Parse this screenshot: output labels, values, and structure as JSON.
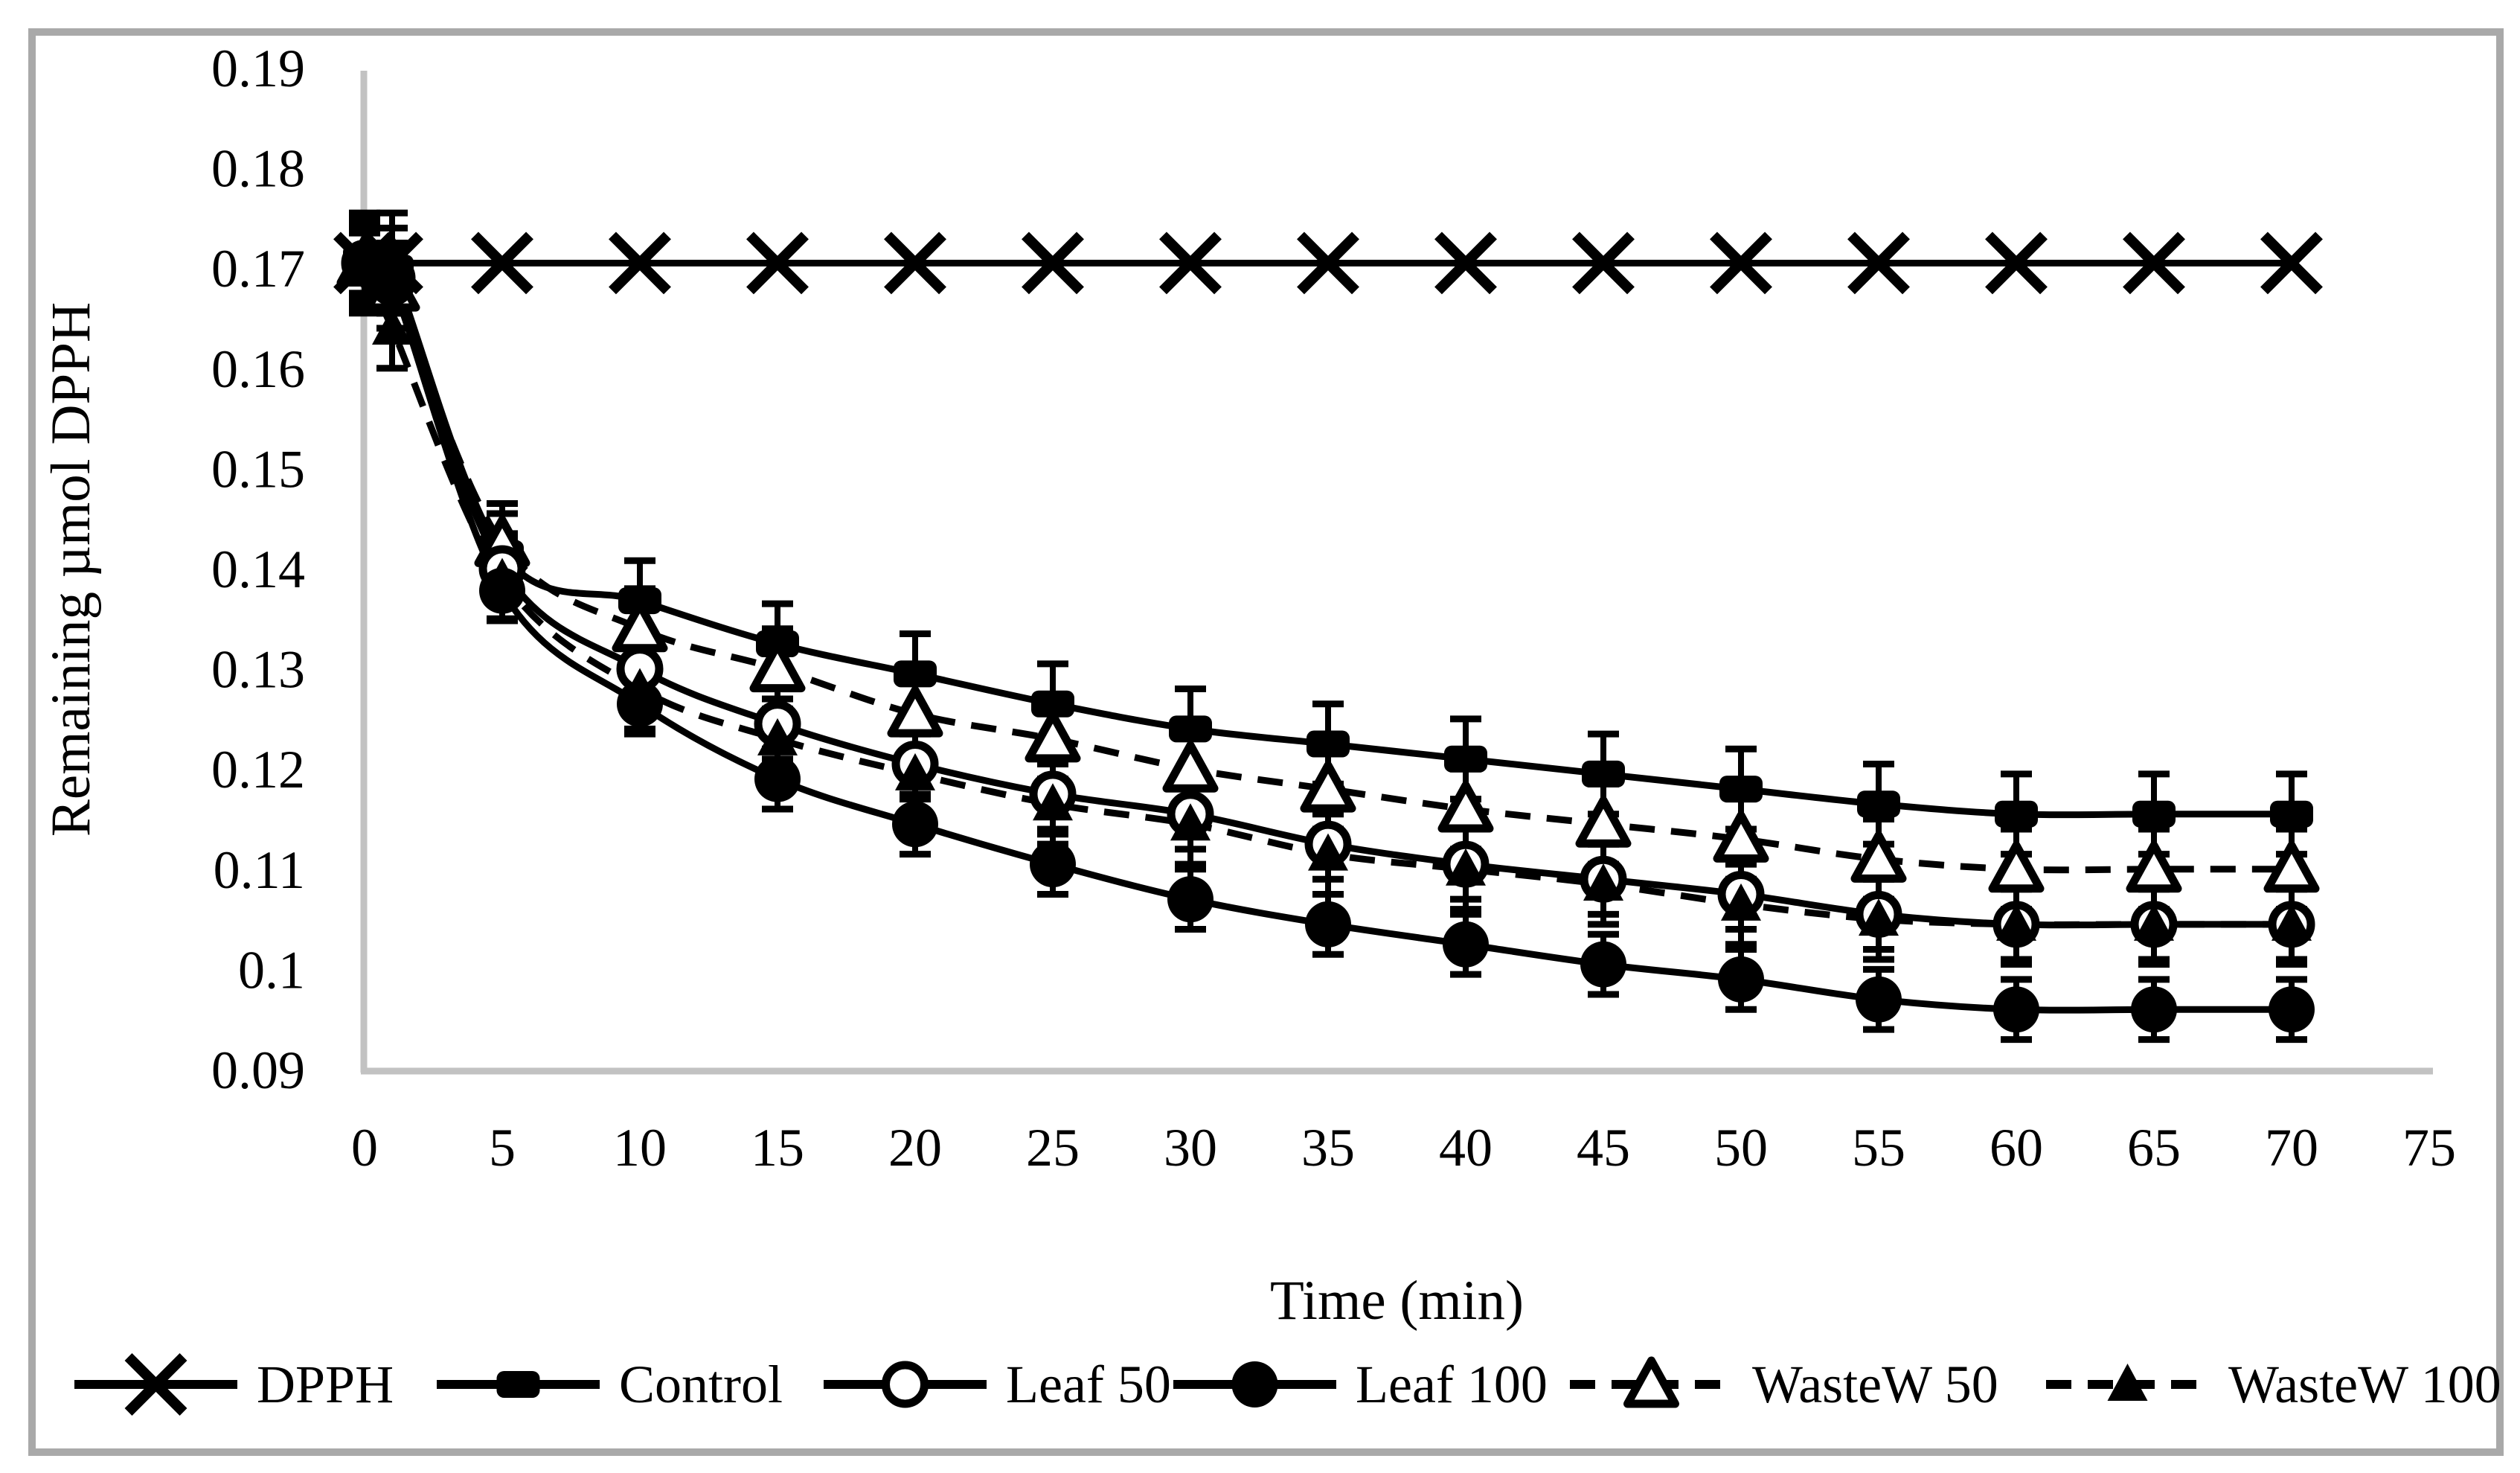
{
  "figure": {
    "background": "#ffffff",
    "border_color": "#a9a9a9",
    "axis_line_color": "#c2c2c2",
    "text_color": "#000000",
    "series_color": "#000000"
  },
  "chart_data": {
    "type": "line",
    "title": "",
    "xlabel": "Time (min)",
    "ylabel": "Remaining µmol DPPH",
    "x": [
      0,
      1,
      5,
      10,
      15,
      20,
      25,
      30,
      35,
      40,
      45,
      50,
      55,
      60,
      65,
      70
    ],
    "x_ticks": [
      0,
      5,
      10,
      15,
      20,
      25,
      30,
      35,
      40,
      45,
      50,
      55,
      60,
      65,
      70,
      75
    ],
    "y_ticks": [
      "0.19",
      "0.18",
      "0.17",
      "0.16",
      "0.15",
      "0.14",
      "0.13",
      "0.12",
      "0.11",
      "0.1",
      "0.09"
    ],
    "xlim": [
      0,
      75
    ],
    "ylim": [
      0.09,
      0.19
    ],
    "grid": false,
    "legend_position": "bottom",
    "series": [
      {
        "name": "DPPH",
        "marker": "x",
        "line": "solid",
        "z": 5,
        "err": 0.005,
        "err_points": 2,
        "values": [
          0.1705,
          0.1705,
          0.1705,
          0.1705,
          0.1705,
          0.1705,
          0.1705,
          0.1705,
          0.1705,
          0.1705,
          0.1705,
          0.1705,
          0.1705,
          0.1705,
          0.1705,
          0.1705
        ]
      },
      {
        "name": "Control",
        "marker": "square",
        "line": "solid",
        "z": 0,
        "err": 0.004,
        "values": [
          0.171,
          0.17,
          0.1415,
          0.1368,
          0.1325,
          0.1295,
          0.1265,
          0.124,
          0.1225,
          0.121,
          0.1195,
          0.118,
          0.1165,
          0.1155,
          0.1155,
          0.1155
        ]
      },
      {
        "name": "Leaf 50",
        "marker": "circle-open",
        "line": "solid",
        "z": 2,
        "err": 0.0035,
        "values": [
          0.1705,
          0.169,
          0.14,
          0.13,
          0.1245,
          0.1205,
          0.1175,
          0.1155,
          0.1125,
          0.1105,
          0.109,
          0.1075,
          0.1055,
          0.1045,
          0.1045,
          0.1045
        ]
      },
      {
        "name": "Leaf 100",
        "marker": "circle",
        "line": "solid",
        "z": 4,
        "err": 0.003,
        "values": [
          0.1705,
          0.1685,
          0.1378,
          0.1265,
          0.119,
          0.1145,
          0.1105,
          0.107,
          0.1045,
          0.1025,
          0.1005,
          0.099,
          0.097,
          0.096,
          0.096,
          0.096
        ]
      },
      {
        "name": "WasteW 50",
        "marker": "triangle-open",
        "line": "dashed",
        "z": 1,
        "err": 0.004,
        "values": [
          0.1705,
          0.168,
          0.1425,
          0.134,
          0.13,
          0.1255,
          0.123,
          0.12,
          0.118,
          0.116,
          0.1145,
          0.113,
          0.111,
          0.11,
          0.11,
          0.11
        ]
      },
      {
        "name": "WasteW 100",
        "marker": "triangle",
        "line": "dashed",
        "z": 3,
        "err": 0.004,
        "values": [
          0.17,
          0.164,
          0.139,
          0.128,
          0.123,
          0.1195,
          0.1165,
          0.1145,
          0.1115,
          0.11,
          0.1085,
          0.1065,
          0.105,
          0.1045,
          0.1045,
          0.1045
        ]
      }
    ]
  }
}
